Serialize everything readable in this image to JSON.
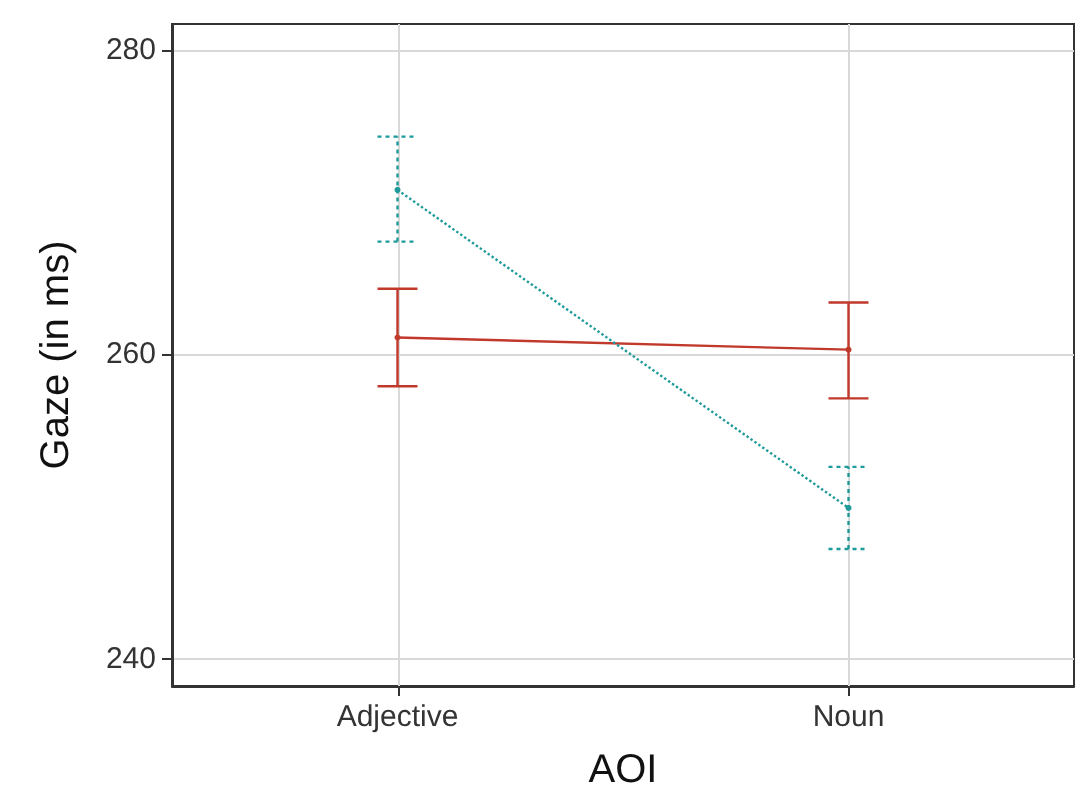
{
  "chart_data": {
    "type": "line",
    "xlabel": "AOI",
    "ylabel": "Gaze (in ms)",
    "categories": [
      "Adjective",
      "Noun"
    ],
    "series": [
      {
        "color": "#c0392b",
        "values": [
          261.1,
          260.3
        ],
        "errors": [
          [
            257.9,
            264.3
          ],
          [
            257.1,
            263.4
          ]
        ],
        "line_style": "solid"
      },
      {
        "color": "#1f9a9a",
        "values": [
          270.8,
          249.9
        ],
        "errors": [
          [
            267.4,
            274.3
          ],
          [
            247.2,
            252.6
          ]
        ],
        "line_style": "dotted"
      }
    ],
    "ylim": [
      238.2,
      281.7
    ],
    "yticks": [
      240,
      260,
      280
    ],
    "grid": true,
    "marker": "circle"
  }
}
